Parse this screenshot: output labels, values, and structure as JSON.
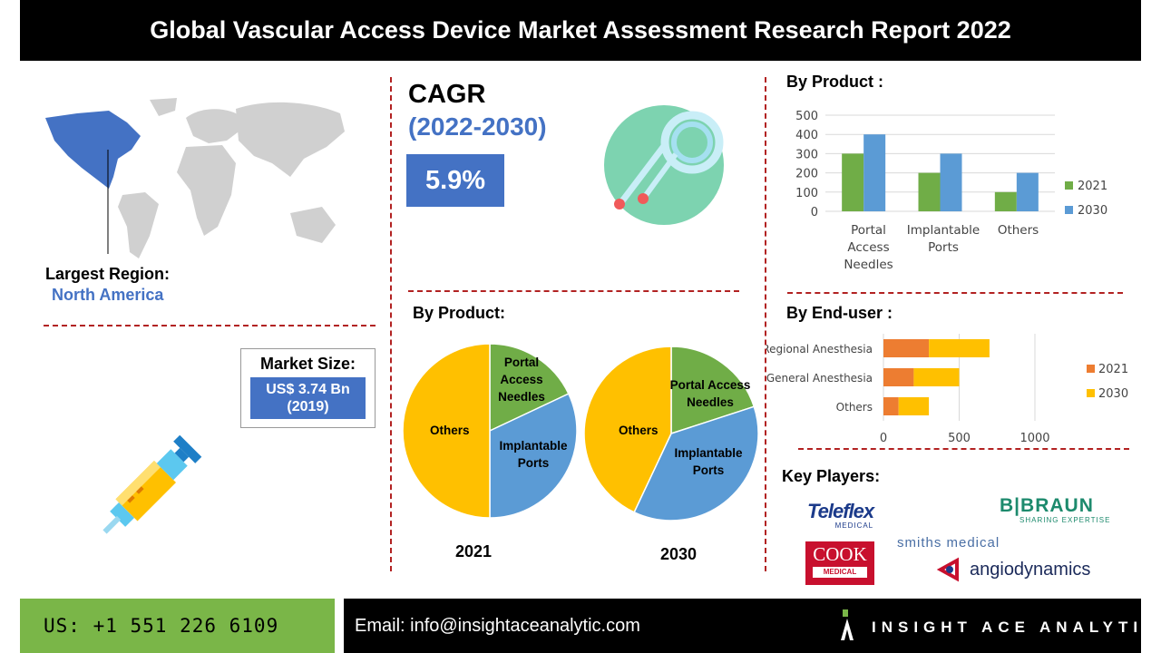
{
  "title": "Global Vascular Access Device Market Assessment Research Report 2022",
  "region": {
    "label": "Largest Region:",
    "value": "North America"
  },
  "market_size": {
    "label": "Market Size:",
    "value": "US$ 3.74 Bn",
    "year": "(2019)"
  },
  "cagr": {
    "label": "CAGR",
    "period": "(2022-2030)",
    "value": "5.9%"
  },
  "by_product_bar": {
    "heading": "By Product :",
    "legend": [
      "2021",
      "2030"
    ]
  },
  "by_product_pie": {
    "heading": "By Product:",
    "year_2021": "2021",
    "year_2030": "2030",
    "labels": {
      "others": "Others",
      "portal": "Portal Access Needles",
      "implantable": "Implantable Ports"
    }
  },
  "by_end_user": {
    "heading": "By End-user :",
    "legend": [
      "2021",
      "2030"
    ]
  },
  "key_players": {
    "heading": "Key Players:",
    "teleflex": "Teleflex",
    "teleflex_sub": "MEDICAL",
    "bbraun": "B|BRAUN",
    "bbraun_sub": "SHARING EXPERTISE",
    "cook": "COOK",
    "cook_sub": "MEDICAL",
    "smiths": "smiths medical",
    "angio": "angiodynamics"
  },
  "footer": {
    "phone": "US: +1 551 226 6109",
    "email": "Email: info@insightaceanalytic.com",
    "brand": "INSIGHT ACE ANALYTIC"
  },
  "colors": {
    "green": "#70ad47",
    "blue": "#5b9bd5",
    "orange": "#ed7d31",
    "yellow": "#ffc000",
    "accent_blue": "#4472c4"
  },
  "chart_data": [
    {
      "type": "bar",
      "categories": [
        "Portal Access Needles",
        "Implantable Ports",
        "Others"
      ],
      "series": [
        {
          "name": "2021",
          "values": [
            300,
            200,
            100
          ]
        },
        {
          "name": "2030",
          "values": [
            400,
            300,
            200
          ]
        }
      ],
      "ylim": [
        0,
        500
      ],
      "yticks": [
        "500",
        "400",
        "300",
        "200",
        "100",
        "0"
      ],
      "legend": "right"
    },
    {
      "type": "pie",
      "year": "2021",
      "slices": [
        {
          "name": "Portal Access Needles",
          "value": 18
        },
        {
          "name": "Implantable Ports",
          "value": 32
        },
        {
          "name": "Others",
          "value": 50
        }
      ]
    },
    {
      "type": "pie",
      "year": "2030",
      "slices": [
        {
          "name": "Portal Access Needles",
          "value": 20
        },
        {
          "name": "Implantable Ports",
          "value": 37
        },
        {
          "name": "Others",
          "value": 43
        }
      ]
    },
    {
      "type": "bar",
      "orientation": "horizontal",
      "stacked": true,
      "categories": [
        "Regional Anesthesia",
        "General Anesthesia",
        "Others"
      ],
      "series": [
        {
          "name": "2021",
          "values": [
            300,
            200,
            100
          ]
        },
        {
          "name": "2030",
          "values": [
            400,
            300,
            200
          ]
        }
      ],
      "xlim": [
        0,
        1000
      ],
      "xticks": [
        "0",
        "500",
        "1000"
      ],
      "legend": "right"
    }
  ]
}
